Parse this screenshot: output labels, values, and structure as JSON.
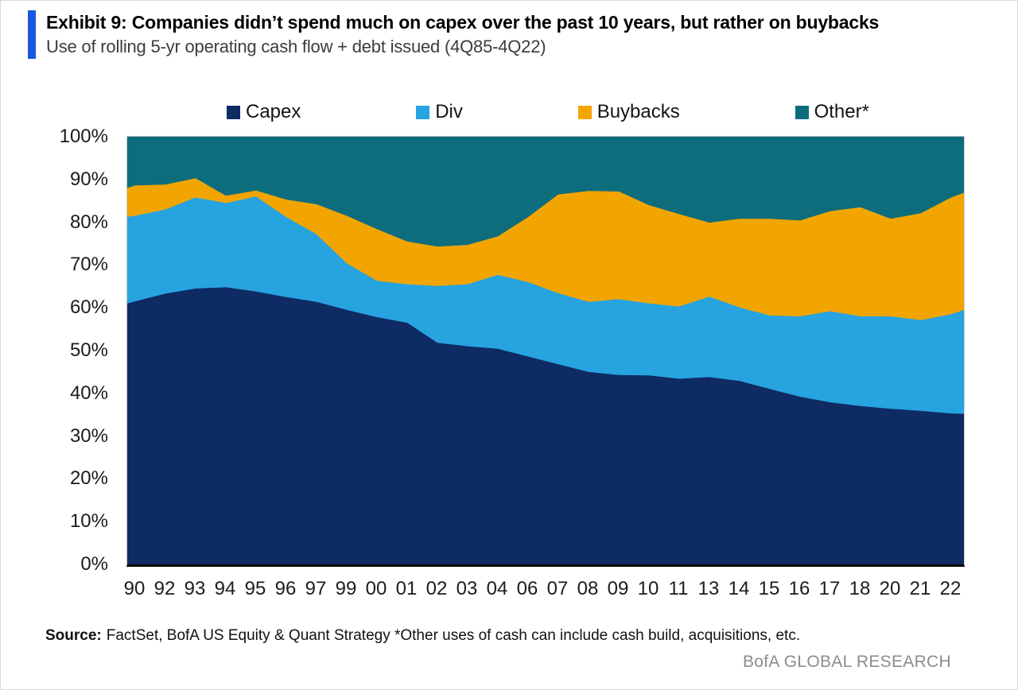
{
  "header": {
    "title": "Exhibit 9: Companies didn’t spend much on capex over the past 10 years, but rather on buybacks",
    "subtitle": "Use of rolling 5-yr operating cash flow + debt issued (4Q85-4Q22)",
    "accent_color": "#1a58e2"
  },
  "footer": {
    "source_label": "Source:",
    "source_text": "FactSet, BofA US Equity & Quant Strategy *Other uses of cash can include cash build, acquisitions,  etc.",
    "watermark": "BofA GLOBAL RESEARCH"
  },
  "chart_data": {
    "type": "area",
    "stacked": true,
    "unit": "percent of operating cash flow + debt issued",
    "title": "Use of rolling 5-yr operating cash flow + debt issued (4Q85-4Q22)",
    "xlabel": "",
    "ylabel": "",
    "ylim": [
      0,
      100
    ],
    "grid": false,
    "legend_position": "top",
    "y_tick_labels": [
      "100%",
      "90%",
      "80%",
      "70%",
      "60%",
      "50%",
      "40%",
      "30%",
      "20%",
      "10%",
      "0%"
    ],
    "x_tick_labels": [
      "90",
      "92",
      "93",
      "94",
      "95",
      "96",
      "97",
      "99",
      "00",
      "01",
      "02",
      "03",
      "04",
      "06",
      "07",
      "08",
      "09",
      "10",
      "11",
      "13",
      "14",
      "15",
      "16",
      "17",
      "18",
      "20",
      "21",
      "22"
    ],
    "legend": [
      {
        "key": "capex",
        "label": "Capex",
        "color": "#0e2b64"
      },
      {
        "key": "div",
        "label": "Div",
        "color": "#27a3e0"
      },
      {
        "key": "buybacks",
        "label": "Buybacks",
        "color": "#f2a500"
      },
      {
        "key": "other",
        "label": "Other*",
        "color": "#0e6d7c"
      }
    ],
    "series_order_bottom_to_top": [
      "capex",
      "div",
      "buybacks",
      "other"
    ],
    "samples": [
      {
        "x": 0.0,
        "capex": 61.0,
        "div": 20.3,
        "buybacks": 6.7,
        "other": 12.0
      },
      {
        "x": 0.0095,
        "capex": 61.5,
        "div": 20.0,
        "buybacks": 7.1,
        "other": 11.4
      },
      {
        "x": 0.0456,
        "capex": 63.3,
        "div": 19.7,
        "buybacks": 5.8,
        "other": 11.2
      },
      {
        "x": 0.0817,
        "capex": 64.5,
        "div": 21.3,
        "buybacks": 4.5,
        "other": 9.7
      },
      {
        "x": 0.1179,
        "capex": 64.8,
        "div": 19.7,
        "buybacks": 1.7,
        "other": 13.8
      },
      {
        "x": 0.154,
        "capex": 63.8,
        "div": 22.2,
        "buybacks": 1.4,
        "other": 12.6
      },
      {
        "x": 0.1901,
        "capex": 62.5,
        "div": 18.7,
        "buybacks": 4.1,
        "other": 14.7
      },
      {
        "x": 0.2262,
        "capex": 61.4,
        "div": 15.8,
        "buybacks": 7.0,
        "other": 15.8
      },
      {
        "x": 0.2624,
        "capex": 59.5,
        "div": 10.9,
        "buybacks": 11.1,
        "other": 18.5
      },
      {
        "x": 0.2985,
        "capex": 57.8,
        "div": 8.5,
        "buybacks": 12.1,
        "other": 21.6
      },
      {
        "x": 0.3346,
        "capex": 56.5,
        "div": 9.0,
        "buybacks": 10.0,
        "other": 24.5
      },
      {
        "x": 0.3707,
        "capex": 51.8,
        "div": 13.3,
        "buybacks": 9.2,
        "other": 25.7
      },
      {
        "x": 0.4068,
        "capex": 51.0,
        "div": 14.5,
        "buybacks": 9.2,
        "other": 25.3
      },
      {
        "x": 0.443,
        "capex": 50.4,
        "div": 17.3,
        "buybacks": 9.0,
        "other": 23.3
      },
      {
        "x": 0.4791,
        "capex": 48.6,
        "div": 17.4,
        "buybacks": 15.2,
        "other": 18.8
      },
      {
        "x": 0.5152,
        "capex": 46.8,
        "div": 16.6,
        "buybacks": 23.1,
        "other": 13.5
      },
      {
        "x": 0.5513,
        "capex": 45.0,
        "div": 16.4,
        "buybacks": 25.9,
        "other": 12.7
      },
      {
        "x": 0.5875,
        "capex": 44.3,
        "div": 17.7,
        "buybacks": 25.2,
        "other": 12.8
      },
      {
        "x": 0.6236,
        "capex": 44.2,
        "div": 16.8,
        "buybacks": 23.0,
        "other": 16.0
      },
      {
        "x": 0.6597,
        "capex": 43.4,
        "div": 16.9,
        "buybacks": 21.6,
        "other": 18.1
      },
      {
        "x": 0.6958,
        "capex": 43.8,
        "div": 18.8,
        "buybacks": 17.3,
        "other": 20.1
      },
      {
        "x": 0.7319,
        "capex": 42.9,
        "div": 17.2,
        "buybacks": 20.7,
        "other": 19.2
      },
      {
        "x": 0.7681,
        "capex": 41.0,
        "div": 17.2,
        "buybacks": 22.6,
        "other": 19.2
      },
      {
        "x": 0.8042,
        "capex": 39.2,
        "div": 18.8,
        "buybacks": 22.4,
        "other": 19.6
      },
      {
        "x": 0.8403,
        "capex": 37.9,
        "div": 21.3,
        "buybacks": 23.4,
        "other": 17.4
      },
      {
        "x": 0.8764,
        "capex": 37.0,
        "div": 21.0,
        "buybacks": 25.5,
        "other": 16.5
      },
      {
        "x": 0.9125,
        "capex": 36.4,
        "div": 21.6,
        "buybacks": 22.8,
        "other": 19.2
      },
      {
        "x": 0.9487,
        "capex": 35.9,
        "div": 21.2,
        "buybacks": 25.0,
        "other": 17.9
      },
      {
        "x": 0.9848,
        "capex": 35.3,
        "div": 23.2,
        "buybacks": 27.3,
        "other": 14.2
      },
      {
        "x": 1.0,
        "capex": 35.2,
        "div": 24.3,
        "buybacks": 27.4,
        "other": 13.1
      }
    ]
  }
}
